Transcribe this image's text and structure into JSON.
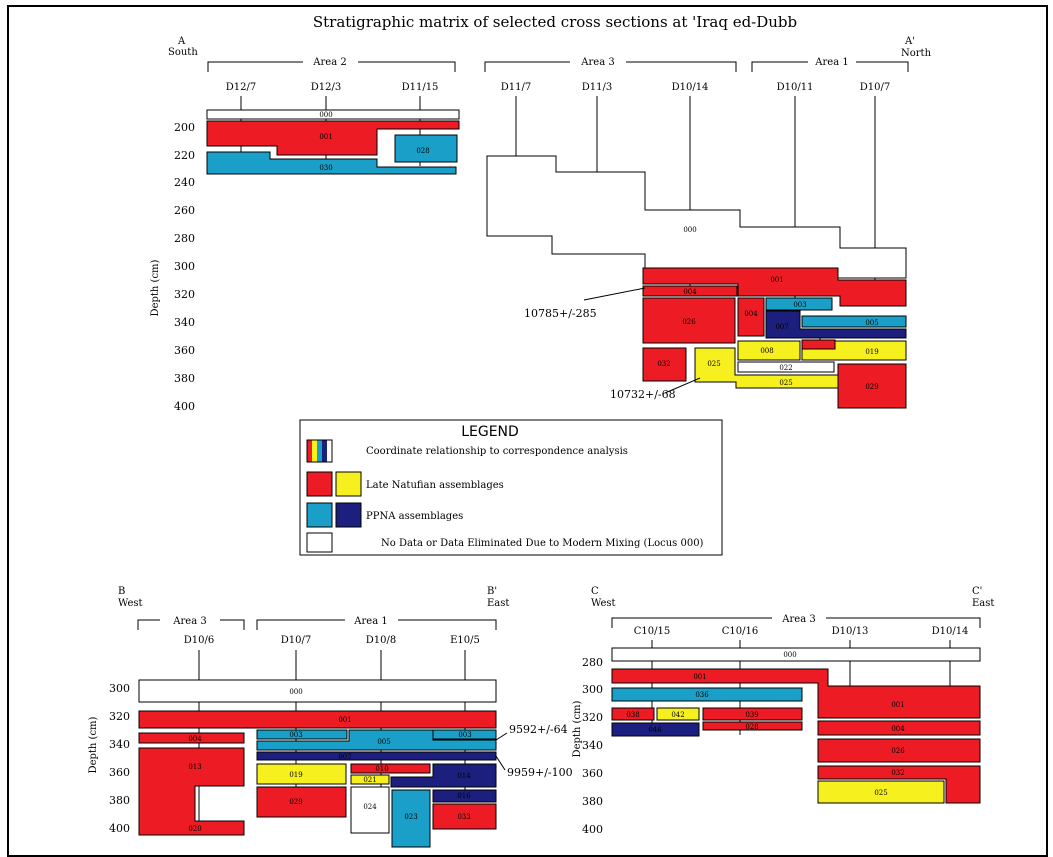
{
  "title": "Stratigraphic matrix of selected cross sections at 'Iraq ed-Dubb",
  "colors": {
    "late_natufian_red": "#ed1c24",
    "late_natufian_yellow": "#f5f01e",
    "ppna_cyan": "#1aa0c8",
    "ppna_navy": "#1d1f7e",
    "no_data": "#ffffff"
  },
  "depth_label": "Depth (cm)",
  "sectionA": {
    "left_letter": "A",
    "left_dir": "South",
    "right_letter": "A'",
    "right_dir": "North",
    "areas": [
      "Area 2",
      "Area 3",
      "Area 1"
    ],
    "columns": [
      "D12/7",
      "D12/3",
      "D11/15",
      "D11/7",
      "D11/3",
      "D10/14",
      "D10/11",
      "D10/7"
    ],
    "depth_ticks": [
      "200",
      "220",
      "240",
      "260",
      "280",
      "300",
      "320",
      "340",
      "360",
      "380",
      "400"
    ],
    "dates": [
      "10785+/-285",
      "10732+/-68"
    ]
  },
  "sectionB": {
    "left_letter": "B",
    "left_dir": "West",
    "right_letter": "B'",
    "right_dir": "East",
    "areas": [
      "Area 3",
      "Area 1"
    ],
    "columns": [
      "D10/6",
      "D10/7",
      "D10/8",
      "E10/5"
    ],
    "depth_ticks": [
      "300",
      "320",
      "340",
      "360",
      "380",
      "400"
    ],
    "dates": [
      "9592+/-64",
      "9959+/-100"
    ]
  },
  "sectionC": {
    "left_letter": "C",
    "left_dir": "West",
    "right_letter": "C'",
    "right_dir": "East",
    "areas": [
      "Area 3"
    ],
    "columns": [
      "C10/15",
      "C10/16",
      "D10/13",
      "D10/14"
    ],
    "depth_ticks": [
      "280",
      "300",
      "320",
      "340",
      "360",
      "380",
      "400"
    ]
  },
  "legend": {
    "heading": "LEGEND",
    "items": [
      "Coordinate  relationship to correspondence analysis",
      "Late Natufian assemblages",
      "PPNA assemblages",
      "No Data or Data Eliminated Due to Modern Mixing (Locus 000)"
    ]
  },
  "loci": {
    "a000": "000",
    "a001": "001",
    "a028": "028",
    "a030": "030",
    "a001b": "001",
    "a000b": "000",
    "a001c": "001",
    "a004": "004",
    "a003": "003",
    "a026": "026",
    "a004b": "004",
    "a007": "007",
    "a005": "005",
    "a008": "008",
    "a010": "010",
    "a019": "019",
    "a032": "032",
    "a025": "025",
    "a022": "022",
    "a025b": "025",
    "a029": "029",
    "b000": "000",
    "b001": "001",
    "b004": "004",
    "b003": "003",
    "b005": "005",
    "b003b": "003",
    "b007": "007",
    "b013": "013",
    "b019": "019",
    "b010": "010",
    "b021": "021",
    "b014": "014",
    "b029": "029",
    "b024": "024",
    "b016": "016",
    "b023": "023",
    "b033": "033",
    "b020": "020",
    "c000": "000",
    "c001": "001",
    "c036": "036",
    "c038": "038",
    "c042": "042",
    "c039": "039",
    "c046": "046",
    "c028": "028",
    "c001b": "001",
    "c004": "004",
    "c026": "026",
    "c032": "032",
    "c025": "025"
  }
}
